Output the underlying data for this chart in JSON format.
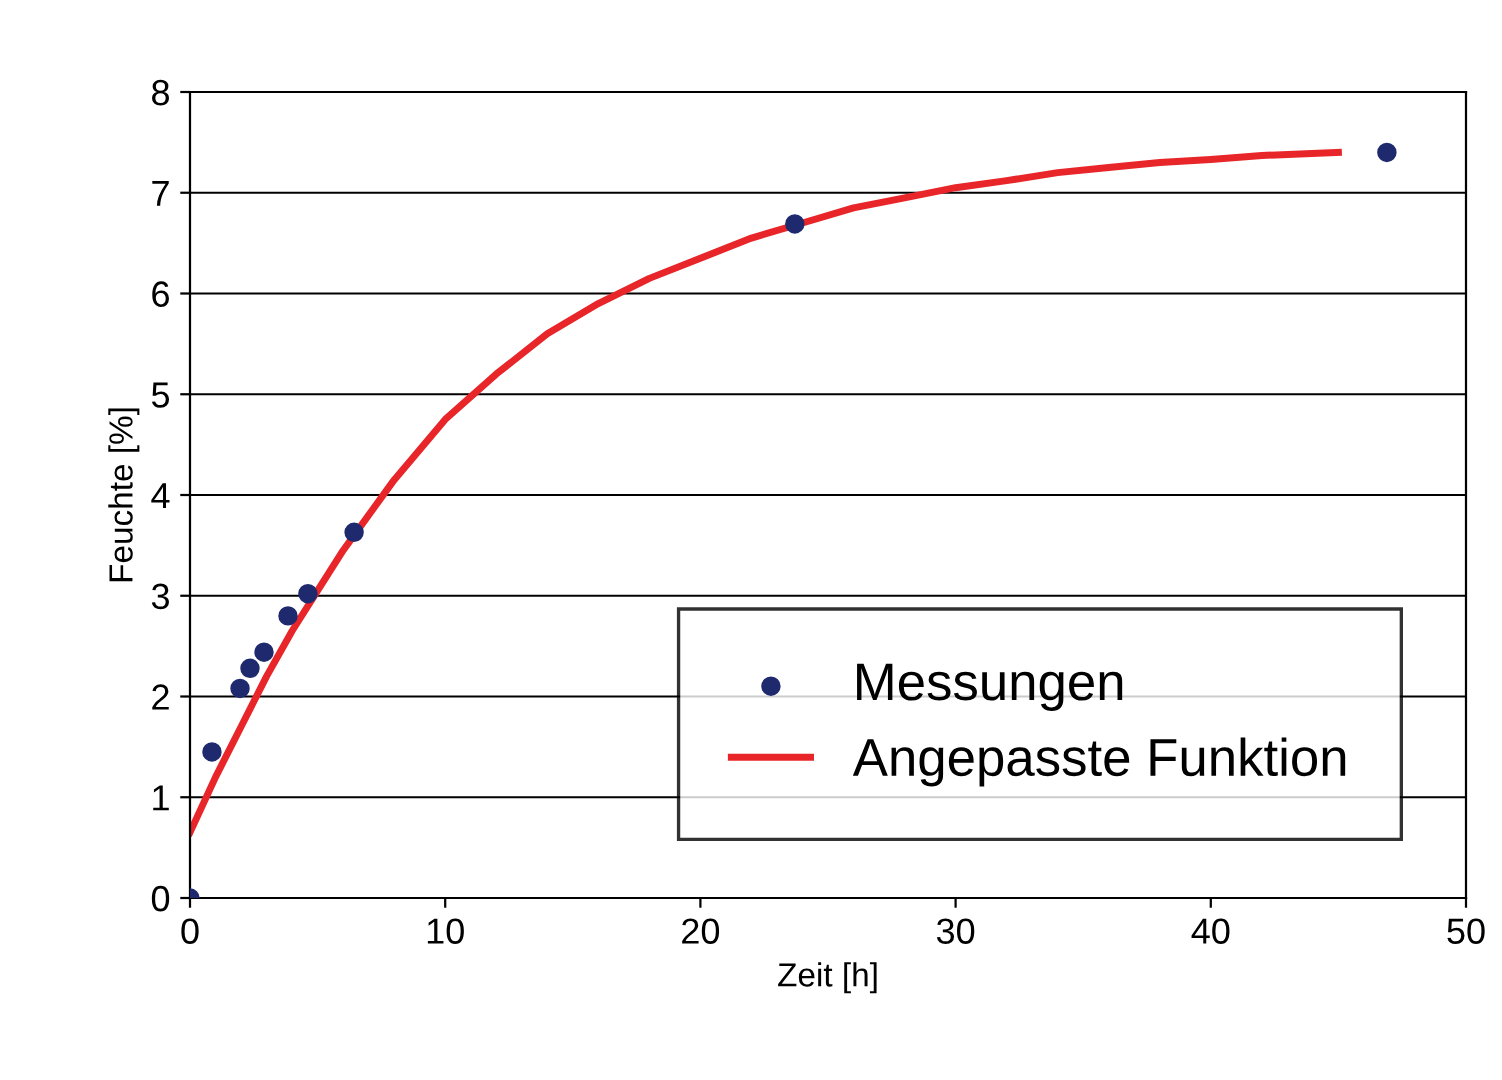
{
  "chart_data": {
    "type": "scatter",
    "xlabel": "Zeit [h]",
    "ylabel": "Feuchte [%]",
    "xlim": [
      0,
      50
    ],
    "xticks": [
      0,
      10,
      20,
      30,
      40,
      50
    ],
    "ylim": [
      0,
      8
    ],
    "yticks": [
      0,
      1,
      2,
      3,
      4,
      5,
      6,
      7,
      8
    ],
    "grid": "y",
    "legend": "bottom right",
    "series": [
      {
        "name": "Messungen",
        "marker": "circle",
        "color": "#1f2a6e",
        "x": [
          0,
          0.86,
          1.96,
          2.35,
          2.9,
          3.84,
          4.62,
          6.43,
          23.7,
          46.9
        ],
        "values": [
          0,
          1.45,
          2.08,
          2.28,
          2.44,
          2.8,
          3.02,
          3.63,
          6.69,
          7.4
        ]
      },
      {
        "name": "Angepasste Funktion",
        "type": "line",
        "marker": "none",
        "line_style": "solid",
        "color": "#e8262a",
        "x": [
          0,
          1,
          2,
          3,
          4,
          5,
          6,
          7,
          8,
          10,
          12,
          14,
          16,
          18,
          20,
          22,
          24,
          26,
          28,
          30,
          32,
          34,
          36,
          38,
          40,
          42,
          45
        ],
        "values": [
          0.65,
          1.2,
          1.7,
          2.2,
          2.65,
          3.05,
          3.45,
          3.8,
          4.15,
          4.75,
          5.2,
          5.6,
          5.9,
          6.15,
          6.35,
          6.55,
          6.7,
          6.85,
          6.95,
          7.05,
          7.12,
          7.2,
          7.25,
          7.3,
          7.33,
          7.37,
          7.4
        ]
      }
    ]
  }
}
